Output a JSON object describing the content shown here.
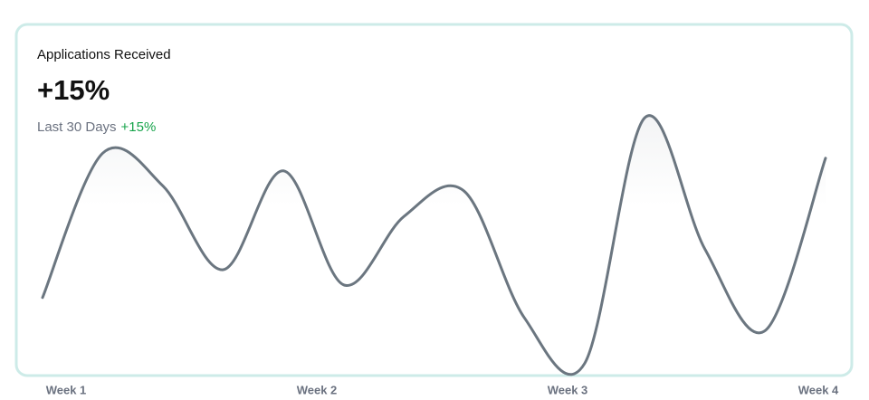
{
  "header": {
    "title": "Applications Received",
    "value": "+15%",
    "period": "Last 30 Days",
    "change": "+15%"
  },
  "chart_data": {
    "type": "line",
    "x_labels": [
      "Week 1",
      "Week 2",
      "Week 3",
      "Week 4"
    ],
    "values": [
      29,
      86,
      73,
      40,
      79,
      34,
      61,
      71,
      21,
      3,
      100,
      48,
      16,
      84
    ],
    "ylim": [
      0,
      100
    ],
    "color": "#6b7680"
  }
}
